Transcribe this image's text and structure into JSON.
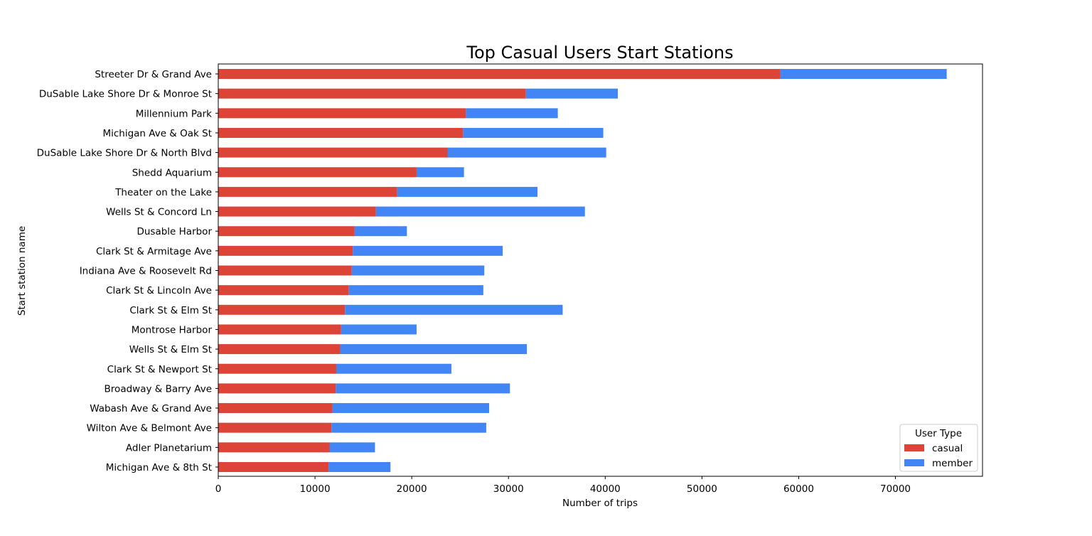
{
  "chart_data": {
    "type": "bar",
    "orientation": "horizontal",
    "stacked": true,
    "title": "Top Casual Users Start Stations",
    "xlabel": "Number of trips",
    "ylabel": "Start station name",
    "xlim": [
      0,
      79000
    ],
    "xticks": [
      0,
      10000,
      20000,
      30000,
      40000,
      50000,
      60000,
      70000
    ],
    "grid": false,
    "legend": {
      "title": "User Type",
      "position": "bottom-right"
    },
    "categories": [
      "Streeter Dr & Grand Ave",
      "DuSable Lake Shore Dr & Monroe St",
      "Millennium Park",
      "Michigan Ave & Oak St",
      "DuSable Lake Shore Dr & North Blvd",
      "Shedd Aquarium",
      "Theater on the Lake",
      "Wells St & Concord Ln",
      "Dusable Harbor",
      "Clark St & Armitage Ave",
      "Indiana Ave & Roosevelt Rd",
      "Clark St & Lincoln Ave",
      "Clark St & Elm St",
      "Montrose Harbor",
      "Wells St & Elm St",
      "Clark St & Newport St",
      "Broadway & Barry Ave",
      "Wabash Ave & Grand Ave",
      "Wilton Ave & Belmont Ave",
      "Adler Planetarium",
      "Michigan Ave & 8th St"
    ],
    "series": [
      {
        "name": "casual",
        "color": "#db4437",
        "values": [
          58100,
          31800,
          25600,
          25300,
          23700,
          20500,
          18500,
          16300,
          14100,
          13900,
          13800,
          13500,
          13100,
          12700,
          12600,
          12200,
          12150,
          11800,
          11700,
          11500,
          11400
        ]
      },
      {
        "name": "member",
        "color": "#4285f4",
        "values": [
          17200,
          9500,
          9500,
          14500,
          16400,
          4900,
          14500,
          21600,
          5400,
          15500,
          13700,
          13900,
          22500,
          7800,
          19300,
          11900,
          18000,
          16200,
          16000,
          4700,
          6400
        ]
      }
    ]
  }
}
